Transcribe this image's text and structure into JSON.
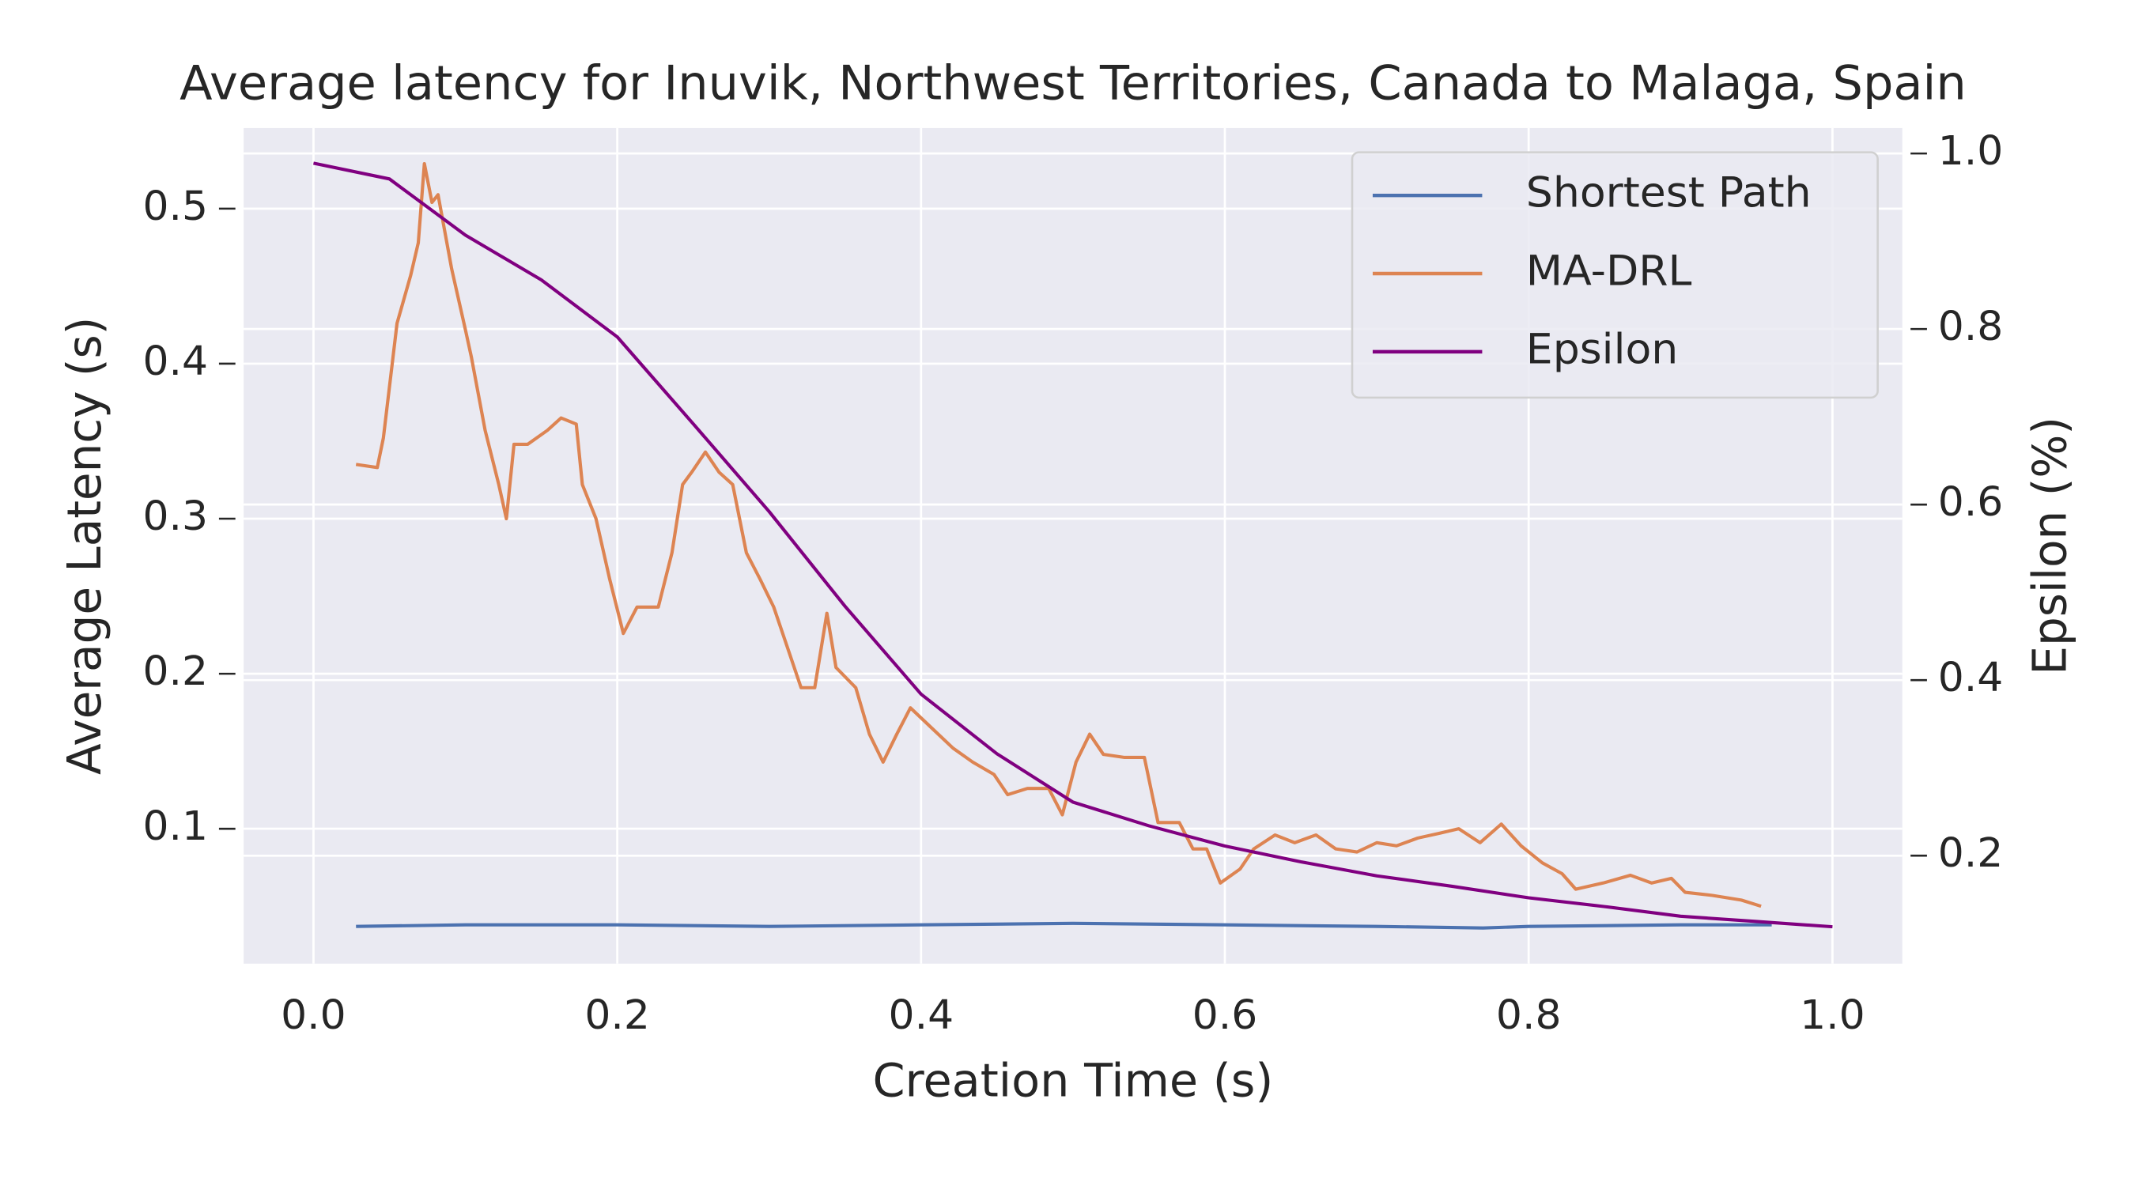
{
  "chart_data": {
    "type": "line",
    "title": "Average latency for Inuvik, Northwest Territories, Canada to Malaga, Spain",
    "xlabel": "Creation Time (s)",
    "ylabel": "Average Latency (s)",
    "y2label": "Epsilon (%)",
    "xlim": [
      -0.046,
      1.046
    ],
    "ylim": [
      0.013,
      0.552
    ],
    "y2lim": [
      0.077,
      1.029
    ],
    "xticks": [
      {
        "value": 0,
        "label": "0.0"
      },
      0.2,
      0.4,
      0.6,
      0.8,
      {
        "value": 1,
        "label": "1.0"
      }
    ],
    "yticks": [
      0.1,
      0.2,
      0.3,
      0.4,
      0.5
    ],
    "y2ticks": [
      0.2,
      0.4,
      0.6,
      0.8,
      {
        "value": 1,
        "label": "1.0"
      }
    ],
    "grid": true,
    "legend": "upper right",
    "series": [
      {
        "name": "Shortest Path",
        "color": "#4c72b0",
        "x": [
          0.028,
          0.1,
          0.2,
          0.3,
          0.4,
          0.5,
          0.6,
          0.7,
          0.77,
          0.8,
          0.9,
          0.96
        ],
        "values": [
          0.037,
          0.038,
          0.038,
          0.037,
          0.038,
          0.039,
          0.038,
          0.037,
          0.036,
          0.037,
          0.038,
          0.038
        ]
      },
      {
        "name": "MA-DRL",
        "color": "#dd8452",
        "x": [
          0.028,
          0.042,
          0.046,
          0.055,
          0.064,
          0.069,
          0.073,
          0.078,
          0.082,
          0.091,
          0.1,
          0.104,
          0.113,
          0.122,
          0.127,
          0.132,
          0.141,
          0.154,
          0.163,
          0.173,
          0.177,
          0.186,
          0.195,
          0.204,
          0.213,
          0.227,
          0.236,
          0.243,
          0.249,
          0.258,
          0.267,
          0.276,
          0.285,
          0.294,
          0.303,
          0.312,
          0.321,
          0.33,
          0.338,
          0.344,
          0.357,
          0.366,
          0.375,
          0.384,
          0.393,
          0.407,
          0.421,
          0.434,
          0.448,
          0.457,
          0.47,
          0.484,
          0.493,
          0.502,
          0.511,
          0.52,
          0.534,
          0.547,
          0.556,
          0.57,
          0.579,
          0.588,
          0.597,
          0.61,
          0.619,
          0.633,
          0.646,
          0.66,
          0.673,
          0.687,
          0.7,
          0.713,
          0.727,
          0.741,
          0.754,
          0.768,
          0.782,
          0.795,
          0.809,
          0.822,
          0.831,
          0.849,
          0.867,
          0.881,
          0.894,
          0.903,
          0.921,
          0.94,
          0.953
        ],
        "values": [
          0.335,
          0.333,
          0.352,
          0.426,
          0.457,
          0.478,
          0.529,
          0.504,
          0.509,
          0.461,
          0.422,
          0.404,
          0.357,
          0.322,
          0.3,
          0.348,
          0.348,
          0.357,
          0.365,
          0.361,
          0.322,
          0.3,
          0.261,
          0.226,
          0.243,
          0.243,
          0.278,
          0.322,
          0.33,
          0.343,
          0.33,
          0.322,
          0.278,
          0.261,
          0.243,
          0.217,
          0.191,
          0.191,
          0.239,
          0.204,
          0.191,
          0.161,
          0.143,
          0.161,
          0.178,
          0.165,
          0.152,
          0.143,
          0.135,
          0.122,
          0.126,
          0.126,
          0.109,
          0.143,
          0.161,
          0.148,
          0.146,
          0.146,
          0.104,
          0.104,
          0.087,
          0.087,
          0.065,
          0.074,
          0.087,
          0.096,
          0.091,
          0.096,
          0.087,
          0.085,
          0.091,
          0.089,
          0.094,
          0.097,
          0.1,
          0.091,
          0.103,
          0.089,
          0.078,
          0.071,
          0.061,
          0.065,
          0.07,
          0.065,
          0.068,
          0.059,
          0.057,
          0.054,
          0.05
        ]
      },
      {
        "name": "Epsilon",
        "color": "#800080",
        "axis": "y2",
        "x": [
          0,
          0.05,
          0.1,
          0.15,
          0.2,
          0.25,
          0.3,
          0.35,
          0.4,
          0.45,
          0.5,
          0.55,
          0.6,
          0.65,
          0.7,
          0.75,
          0.8,
          0.85,
          0.9,
          0.95,
          1
        ],
        "values": [
          0.989,
          0.971,
          0.907,
          0.856,
          0.791,
          0.692,
          0.592,
          0.484,
          0.384,
          0.316,
          0.261,
          0.234,
          0.211,
          0.193,
          0.177,
          0.165,
          0.152,
          0.142,
          0.131,
          0.125,
          0.119
        ]
      }
    ]
  }
}
